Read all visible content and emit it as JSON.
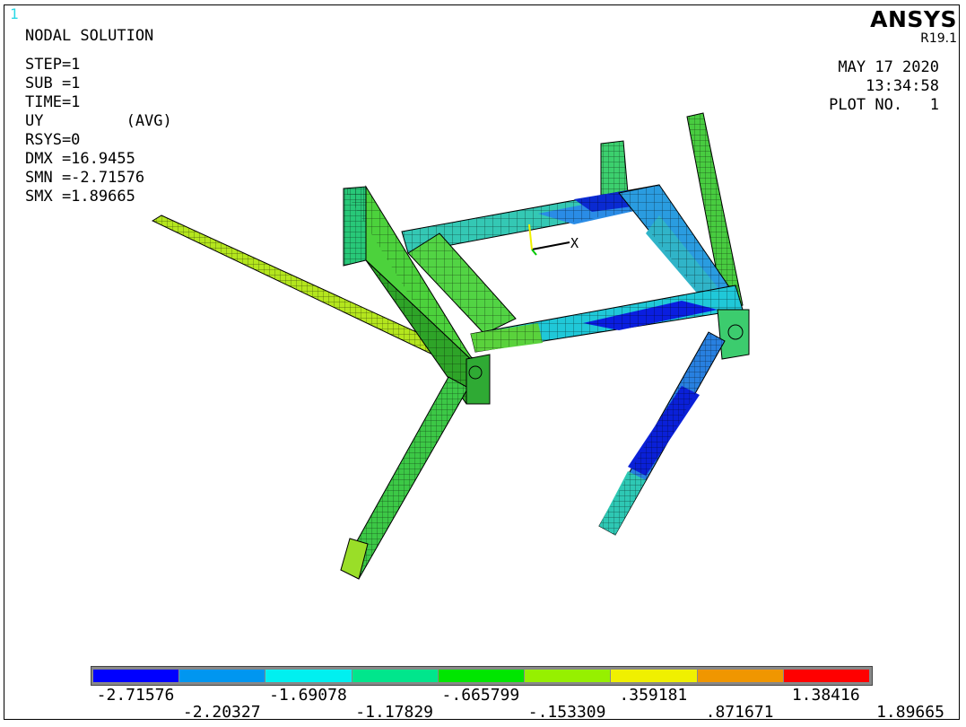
{
  "window_number": "1",
  "brand": "ANSYS",
  "release": "R19.1",
  "title": "NODAL SOLUTION",
  "info": [
    "STEP=1",
    "SUB =1",
    "TIME=1",
    "UY         (AVG)",
    "RSYS=0",
    "DMX =16.9455",
    "SMN =-2.71576",
    "SMX =1.89665"
  ],
  "date": "MAY 17 2020",
  "time": "13:34:58",
  "plot_no": "PLOT NO.   1",
  "triad_axis_label": "X",
  "legend": {
    "colors": [
      "#0000ff",
      "#0096f0",
      "#00f0f0",
      "#00e68c",
      "#00e600",
      "#96f000",
      "#f0f000",
      "#f09600",
      "#ff0000"
    ],
    "top_labels": [
      "-2.71576",
      "-1.69078",
      "-.665799",
      ".359181",
      "1.38416"
    ],
    "bottom_labels": [
      "-2.20327",
      "-1.17829",
      "-.153309",
      ".871671",
      "1.89665"
    ]
  }
}
